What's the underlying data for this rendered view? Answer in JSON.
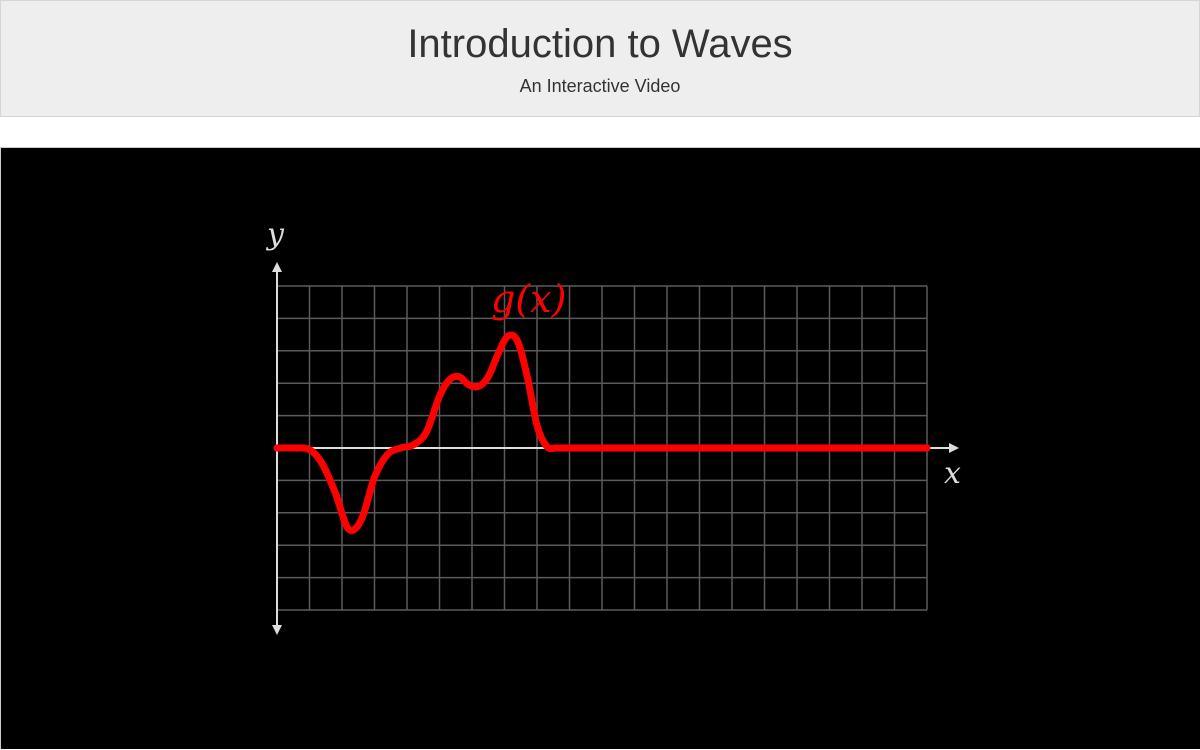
{
  "header": {
    "title": "Introduction to Waves",
    "subtitle": "An Interactive Video"
  },
  "video": {
    "x_axis_label": "x",
    "y_axis_label": "y",
    "function_label": "g(x)",
    "colors": {
      "background": "#000000",
      "grid": "#5a5a5a",
      "axis": "#dddddd",
      "curve": "#ff0000"
    }
  },
  "chart_data": {
    "type": "line",
    "title": "g(x)",
    "xlabel": "x",
    "ylabel": "y",
    "xlim": [
      0,
      20
    ],
    "ylim": [
      -5,
      5
    ],
    "grid": true,
    "series": [
      {
        "name": "g(x)",
        "x": [
          0,
          0.5,
          1,
          1.4,
          1.8,
          2.2,
          2.6,
          3.0,
          3.4,
          3.8,
          4.2,
          4.6,
          5.0,
          5.3,
          5.6,
          5.9,
          6.2,
          6.5,
          6.8,
          7.1,
          7.4,
          7.7,
          8.0,
          8.3,
          8.6,
          8.9,
          9.2,
          9.5,
          10,
          11,
          12,
          14,
          16,
          18,
          20
        ],
        "values": [
          0,
          0,
          -0.05,
          -0.5,
          -1.4,
          -2.5,
          -2.2,
          -0.9,
          -0.2,
          0,
          0.1,
          0.5,
          1.6,
          2.1,
          2.2,
          1.95,
          1.9,
          2.2,
          2.9,
          3.45,
          3.3,
          2.2,
          0.7,
          0.05,
          0,
          0,
          0,
          0,
          0,
          0,
          0,
          0,
          0,
          0,
          0
        ]
      }
    ]
  }
}
